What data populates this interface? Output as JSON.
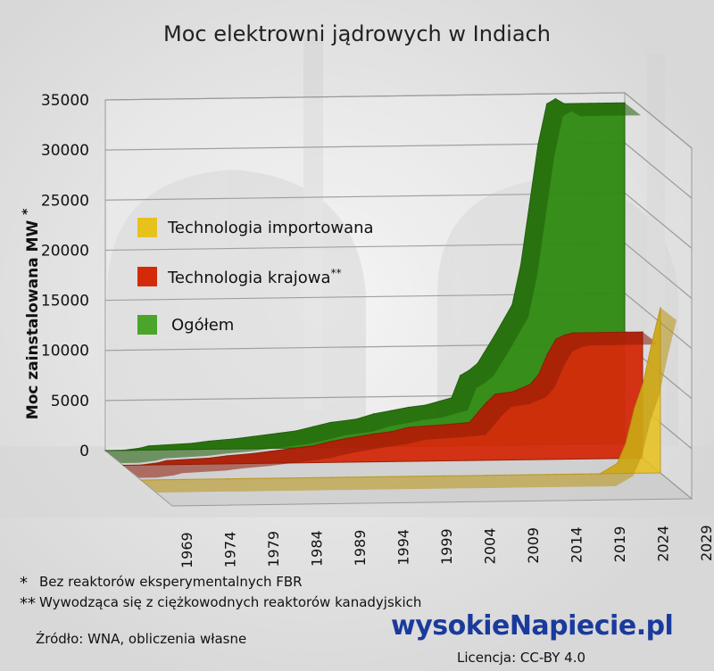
{
  "chart_data": {
    "type": "area",
    "title": "Moc elektrowni jądrowych w Indiach",
    "ylabel": "Moc zainstalowana MW",
    "ylabel_mark": "*",
    "ylim": [
      0,
      35000
    ],
    "yticks": [
      0,
      5000,
      10000,
      15000,
      20000,
      25000,
      30000,
      35000
    ],
    "x_tick_labels": [
      "1969",
      "1974",
      "1979",
      "1984",
      "1989",
      "1994",
      "1999",
      "2004",
      "2009",
      "2014",
      "2019",
      "2024",
      "2029"
    ],
    "grid": true,
    "legend_position": "left",
    "years": [
      1969,
      1971,
      1973,
      1974,
      1979,
      1981,
      1984,
      1986,
      1989,
      1991,
      1993,
      1995,
      1998,
      2000,
      2002,
      2004,
      2006,
      2009,
      2010,
      2011,
      2012,
      2014,
      2016,
      2017,
      2018,
      2019,
      2020,
      2021,
      2022,
      2024,
      2025,
      2026,
      2027,
      2028,
      2029
    ],
    "series": [
      {
        "name": "Technologia importowana",
        "color": "#e8c21c",
        "values": [
          0,
          0,
          0,
          0,
          0,
          0,
          0,
          0,
          0,
          0,
          0,
          0,
          0,
          0,
          0,
          0,
          0,
          0,
          0,
          0,
          0,
          0,
          0,
          0,
          0,
          0,
          0,
          0,
          0,
          1000,
          3000,
          6500,
          9000,
          13000,
          16500
        ]
      },
      {
        "name": "Technologia krajowa",
        "name_mark": "**",
        "color": "#d42a0a",
        "values": [
          0,
          0,
          200,
          400,
          600,
          800,
          1000,
          1200,
          1500,
          1700,
          2100,
          2400,
          2800,
          3000,
          3400,
          3500,
          3600,
          3800,
          4800,
          5800,
          6600,
          6800,
          7500,
          8500,
          10500,
          12000,
          12400,
          12600,
          12600,
          12600,
          12600,
          12600,
          12600,
          12600,
          12600
        ]
      },
      {
        "name": "Ogółem",
        "color": "#2f8a10",
        "values": [
          0,
          0,
          200,
          400,
          600,
          800,
          1000,
          1200,
          1500,
          1700,
          2100,
          2500,
          2800,
          3300,
          3600,
          3900,
          4100,
          4800,
          7000,
          7500,
          8200,
          11000,
          14000,
          18000,
          24000,
          30000,
          34000,
          34500,
          34000,
          34000,
          34000,
          34000,
          34000,
          34000,
          34000
        ]
      }
    ]
  },
  "footnotes": [
    {
      "mark": "*",
      "text": "Bez reaktorów eksperymentalnych FBR"
    },
    {
      "mark": "**",
      "text": "Wywodząca się z ciężkowodnych reaktorów kanadyjskich"
    }
  ],
  "source": "Źródło: WNA, obliczenia własne",
  "logo": "wysokieNapiecie.pl",
  "license": "Licencja: CC-BY 4.0"
}
